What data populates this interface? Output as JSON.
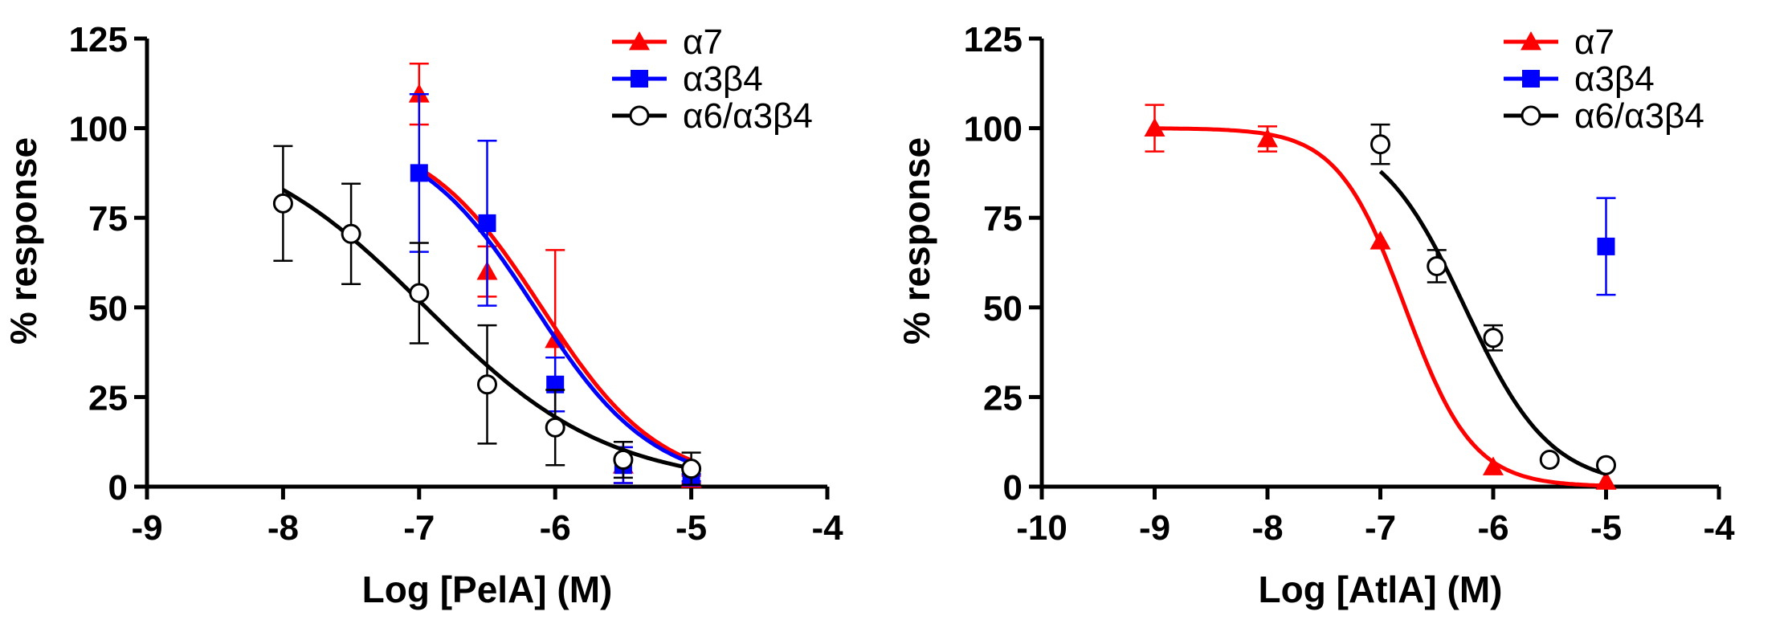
{
  "colors": {
    "a7": "#ff0000",
    "a3b4": "#0000ff",
    "a6": "#000000",
    "axis": "#000000"
  },
  "chart_data": [
    {
      "type": "scatter",
      "name": "pela-panel",
      "xlabel": "Log [PelA] (M)",
      "ylabel": "% response",
      "xlim": [
        -9,
        -4
      ],
      "ylim": [
        0,
        125
      ],
      "xticks": [
        -9,
        -8,
        -7,
        -6,
        -5,
        -4
      ],
      "yticks": [
        0,
        25,
        50,
        75,
        100,
        125
      ],
      "x_tick_labels": [
        "-9",
        "-8",
        "-7",
        "-6",
        "-5",
        "-4"
      ],
      "y_tick_labels": [
        "0",
        "25",
        "50",
        "75",
        "100",
        "125"
      ],
      "legend_position": "top-right",
      "series": [
        {
          "key": "a7",
          "name": "α7",
          "marker": "triangle",
          "points": [
            {
              "x": -7,
              "y": 109.5,
              "err": 8.5
            },
            {
              "x": -6.5,
              "y": 60,
              "err": 7
            },
            {
              "x": -6,
              "y": 41,
              "err": 25
            },
            {
              "x": -5.5,
              "y": 6,
              "err": 5
            },
            {
              "x": -5,
              "y": 2,
              "err": 1
            }
          ],
          "fit": {
            "top": 100,
            "bottom": 0,
            "logIC50": -6.1,
            "hill": 1,
            "from": -7,
            "to": -5
          }
        },
        {
          "key": "a3b4",
          "name": "α3β4",
          "marker": "square",
          "points": [
            {
              "x": -7,
              "y": 87.5,
              "err": 22
            },
            {
              "x": -6.5,
              "y": 73.5,
              "err": 23
            },
            {
              "x": -6,
              "y": 28.5,
              "err": 7.5
            },
            {
              "x": -5.5,
              "y": 6,
              "err": 5
            },
            {
              "x": -5,
              "y": 2.5,
              "err": 1
            }
          ],
          "fit": {
            "top": 100,
            "bottom": 0,
            "logIC50": -6.15,
            "hill": 1,
            "from": -7,
            "to": -5
          }
        },
        {
          "key": "a6",
          "name": "α6/α3β4",
          "marker": "circle",
          "points": [
            {
              "x": -8,
              "y": 79,
              "err": 16
            },
            {
              "x": -7.5,
              "y": 70.5,
              "err": 14
            },
            {
              "x": -7,
              "y": 54,
              "err": 14
            },
            {
              "x": -6.5,
              "y": 28.5,
              "err": 16.5
            },
            {
              "x": -6,
              "y": 16.5,
              "err": 10.5
            },
            {
              "x": -5.5,
              "y": 7.5,
              "err": 5
            },
            {
              "x": -5,
              "y": 5,
              "err": 4.5
            }
          ],
          "fit": {
            "top": 100,
            "bottom": 0,
            "logIC50": -6.95,
            "hill": 0.65,
            "from": -8,
            "to": -5
          }
        }
      ]
    },
    {
      "type": "scatter",
      "name": "atla-panel",
      "xlabel": "Log [AtlA] (M)",
      "ylabel": "% response",
      "xlim": [
        -10,
        -4
      ],
      "ylim": [
        0,
        125
      ],
      "xticks": [
        -10,
        -9,
        -8,
        -7,
        -6,
        -5,
        -4
      ],
      "yticks": [
        0,
        25,
        50,
        75,
        100,
        125
      ],
      "x_tick_labels": [
        "-10",
        "-9",
        "-8",
        "-7",
        "-6",
        "-5",
        "-4"
      ],
      "y_tick_labels": [
        "0",
        "25",
        "50",
        "75",
        "100",
        "125"
      ],
      "legend_position": "top-right",
      "series": [
        {
          "key": "a7",
          "name": "α7",
          "marker": "triangle",
          "points": [
            {
              "x": -9,
              "y": 100,
              "err": 6.5
            },
            {
              "x": -8,
              "y": 97,
              "err": 3.5
            },
            {
              "x": -7,
              "y": 68.5,
              "err": 0
            },
            {
              "x": -6,
              "y": 5.5,
              "err": 0
            },
            {
              "x": -5,
              "y": 1.5,
              "err": 0
            }
          ],
          "fit": {
            "top": 100,
            "bottom": 0,
            "logIC50": -6.78,
            "hill": 1.45,
            "from": -9,
            "to": -5
          }
        },
        {
          "key": "a3b4",
          "name": "α3β4",
          "marker": "square",
          "points": [
            {
              "x": -5,
              "y": 67,
              "err": 13.5
            }
          ],
          "fit": null
        },
        {
          "key": "a6",
          "name": "α6/α3β4",
          "marker": "circle",
          "points": [
            {
              "x": -7,
              "y": 95.5,
              "err": 5.5
            },
            {
              "x": -6.5,
              "y": 61.5,
              "err": 4.5
            },
            {
              "x": -6,
              "y": 41.5,
              "err": 3.5
            },
            {
              "x": -5.5,
              "y": 7.5,
              "err": 0
            },
            {
              "x": -5,
              "y": 6,
              "err": 0
            }
          ],
          "fit": {
            "top": 100,
            "bottom": 0,
            "logIC50": -6.25,
            "hill": 1.15,
            "from": -7,
            "to": -5
          }
        }
      ]
    }
  ]
}
